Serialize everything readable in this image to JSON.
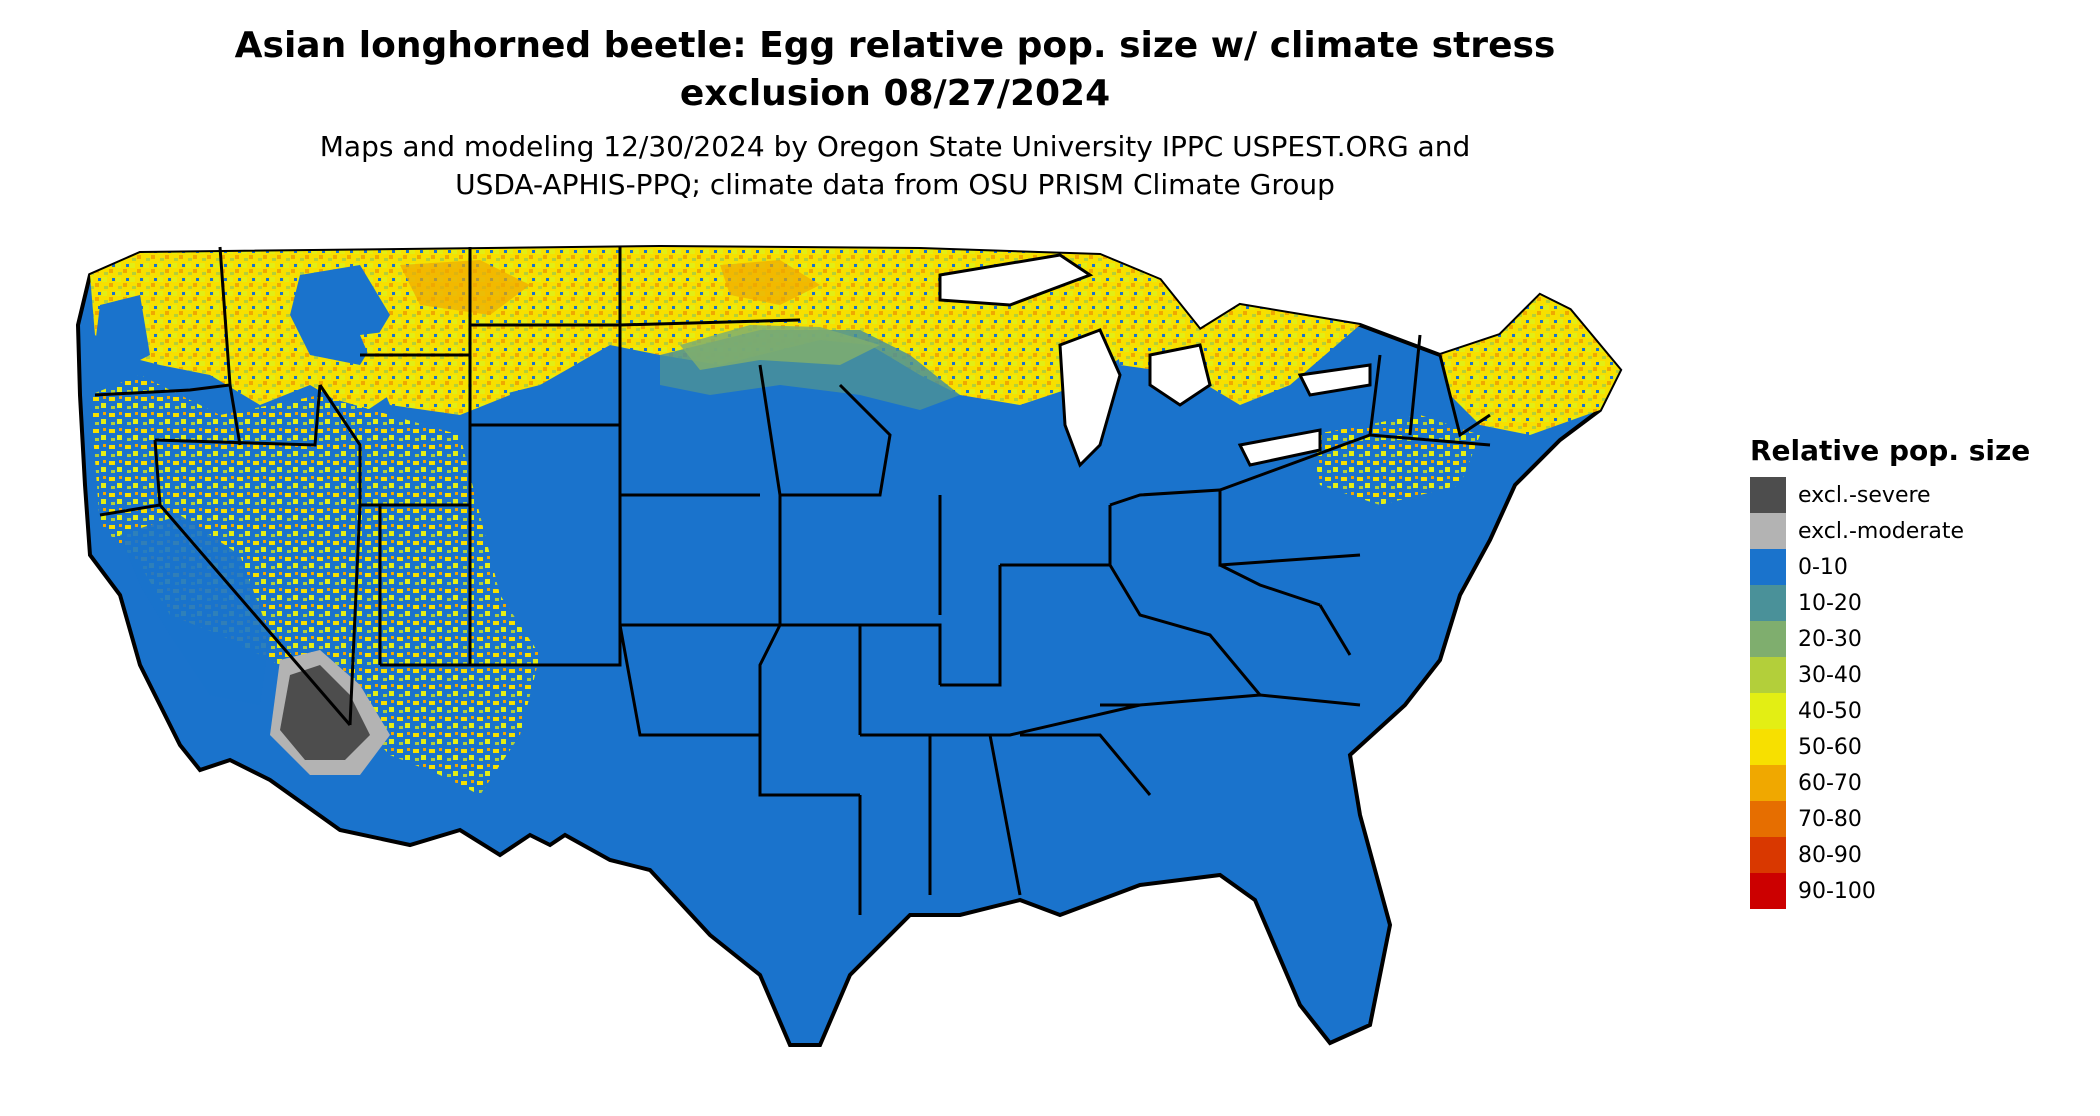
{
  "title": {
    "line1": "Asian longhorned beetle: Egg relative pop. size w/ climate stress",
    "line2": "exclusion 08/27/2024"
  },
  "subtitle": {
    "line1": "Maps and modeling 12/30/2024 by Oregon State University IPPC USPEST.ORG and",
    "line2": "USDA-APHIS-PPQ; climate data from OSU PRISM Climate Group"
  },
  "legend": {
    "title": "Relative pop. size",
    "items": [
      {
        "label": "excl.-severe",
        "color": "#4d4d4d"
      },
      {
        "label": "excl.-moderate",
        "color": "#b3b3b3"
      },
      {
        "label": "0-10",
        "color": "#1a73cc"
      },
      {
        "label": "10-20",
        "color": "#4a9199"
      },
      {
        "label": "20-30",
        "color": "#7fae6e"
      },
      {
        "label": "30-40",
        "color": "#b3cf3a"
      },
      {
        "label": "40-50",
        "color": "#e3ee14"
      },
      {
        "label": "50-60",
        "color": "#f7e000"
      },
      {
        "label": "60-70",
        "color": "#f0a800"
      },
      {
        "label": "70-80",
        "color": "#e66e00"
      },
      {
        "label": "80-90",
        "color": "#d93800"
      },
      {
        "label": "90-100",
        "color": "#cc0000"
      }
    ]
  },
  "map": {
    "base_color": "#1a73cc",
    "border_color": "#000000"
  }
}
